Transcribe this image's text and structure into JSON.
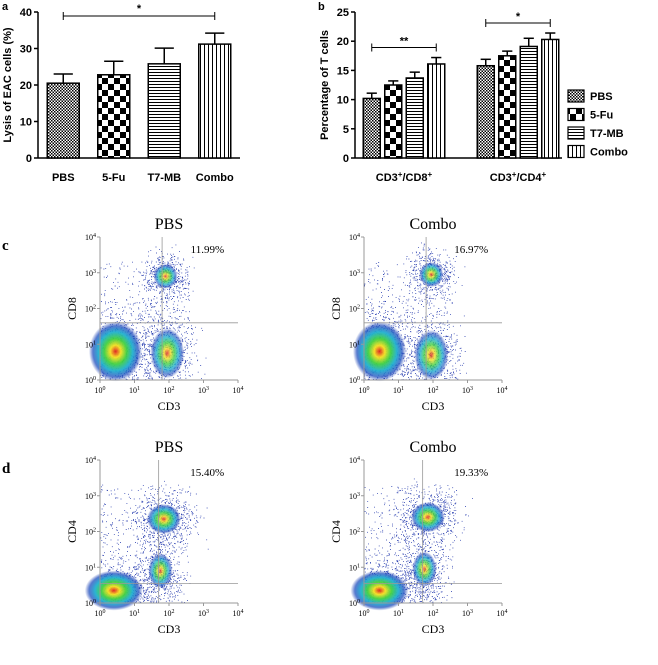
{
  "chart_data": [
    {
      "type": "bar",
      "panel_label": "a",
      "ylabel": "Lysis of EAC cells (%)",
      "categories": [
        "PBS",
        "5-Fu",
        "T7-MB",
        "Combo"
      ],
      "values": [
        20.5,
        22.8,
        25.8,
        31.2
      ],
      "errors": [
        2.5,
        3.7,
        4.3,
        3.0
      ],
      "patterns": [
        "crosshatch",
        "checker",
        "hlines",
        "vlines"
      ],
      "color": "#000000",
      "ylim": [
        0,
        40
      ],
      "yticks": [
        0,
        10,
        20,
        30,
        40
      ],
      "significance": "*"
    },
    {
      "type": "grouped_bar",
      "panel_label": "b",
      "ylabel": "Percentage of T cells",
      "categories": [
        "CD3+/CD8+",
        "CD3+/CD4+"
      ],
      "legend": "right",
      "color": "#000000",
      "series": [
        {
          "name": "PBS",
          "pattern": "crosshatch",
          "values": [
            10.2,
            15.8
          ],
          "errors": [
            0.9,
            1.1
          ]
        },
        {
          "name": "5-Fu",
          "pattern": "checker",
          "values": [
            12.5,
            17.5
          ],
          "errors": [
            0.7,
            0.8
          ]
        },
        {
          "name": "T7-MB",
          "pattern": "hlines",
          "values": [
            13.7,
            19.1
          ],
          "errors": [
            1.0,
            1.4
          ]
        },
        {
          "name": "Combo",
          "pattern": "vlines",
          "values": [
            16.1,
            20.3
          ],
          "errors": [
            1.1,
            1.1
          ]
        }
      ],
      "ylim": [
        0,
        25
      ],
      "yticks": [
        0,
        5,
        10,
        15,
        20,
        25
      ],
      "significance": [
        "**",
        "*"
      ]
    }
  ],
  "flow_cytometry": {
    "log_ticks": [
      {
        "base": "10",
        "exp": "0"
      },
      {
        "base": "10",
        "exp": "1"
      },
      {
        "base": "10",
        "exp": "2"
      },
      {
        "base": "10",
        "exp": "3"
      },
      {
        "base": "10",
        "exp": "4"
      }
    ],
    "rows": [
      {
        "panel_label": "c",
        "plots": [
          {
            "title": "PBS",
            "percent": "11.99%",
            "xlabel": "CD3",
            "ylabel": "CD8"
          },
          {
            "title": "Combo",
            "percent": "16.97%",
            "xlabel": "CD3",
            "ylabel": "CD8"
          }
        ]
      },
      {
        "panel_label": "d",
        "plots": [
          {
            "title": "PBS",
            "percent": "15.40%",
            "xlabel": "CD3",
            "ylabel": "CD4"
          },
          {
            "title": "Combo",
            "percent": "19.33%",
            "xlabel": "CD3",
            "ylabel": "CD4"
          }
        ]
      }
    ]
  }
}
